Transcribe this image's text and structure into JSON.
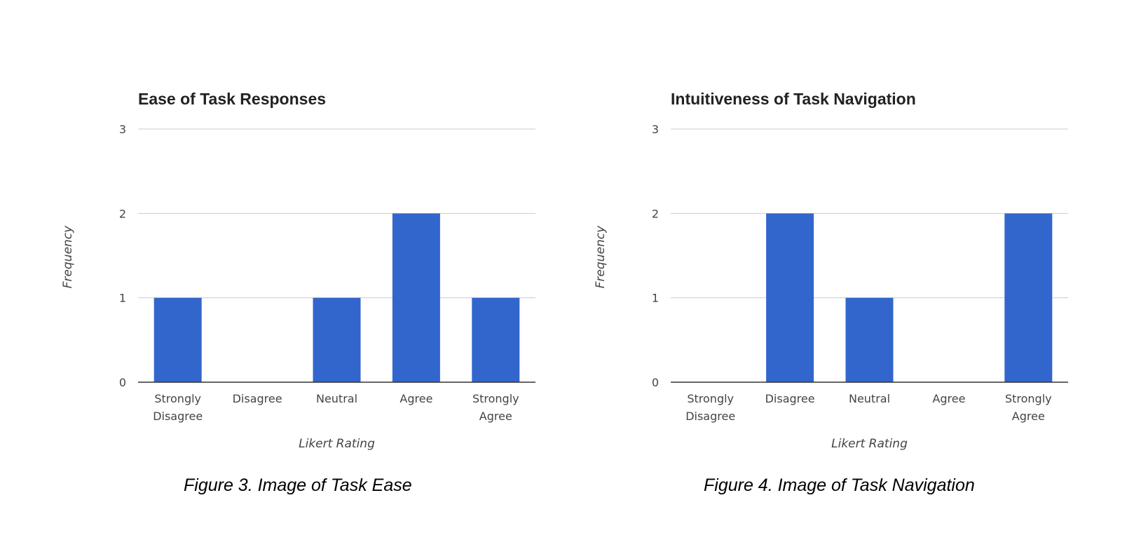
{
  "captions": [
    "Figure 3. Image of Task Ease",
    "Figure 4. Image of Task Navigation"
  ],
  "chart_data": [
    {
      "type": "bar",
      "title": "Ease of Task Responses",
      "xlabel": "Likert Rating",
      "ylabel": "Frequency",
      "categories": [
        [
          "Strongly",
          "Disagree"
        ],
        [
          "Disagree"
        ],
        [
          "Neutral"
        ],
        [
          "Agree"
        ],
        [
          "Strongly",
          "Agree"
        ]
      ],
      "values": [
        1,
        0,
        1,
        2,
        1
      ],
      "ylim": [
        0,
        3
      ],
      "yticks": [
        0,
        1,
        2,
        3
      ],
      "grid": true,
      "legend": "none",
      "bar_color": "#3366cc"
    },
    {
      "type": "bar",
      "title": "Intuitiveness of Task Navigation",
      "xlabel": "Likert Rating",
      "ylabel": "Frequency",
      "categories": [
        [
          "Strongly",
          "Disagree"
        ],
        [
          "Disagree"
        ],
        [
          "Neutral"
        ],
        [
          "Agree"
        ],
        [
          "Strongly",
          "Agree"
        ]
      ],
      "values": [
        0,
        2,
        1,
        0,
        2
      ],
      "ylim": [
        0,
        3
      ],
      "yticks": [
        0,
        1,
        2,
        3
      ],
      "grid": true,
      "legend": "none",
      "bar_color": "#3366cc"
    }
  ]
}
